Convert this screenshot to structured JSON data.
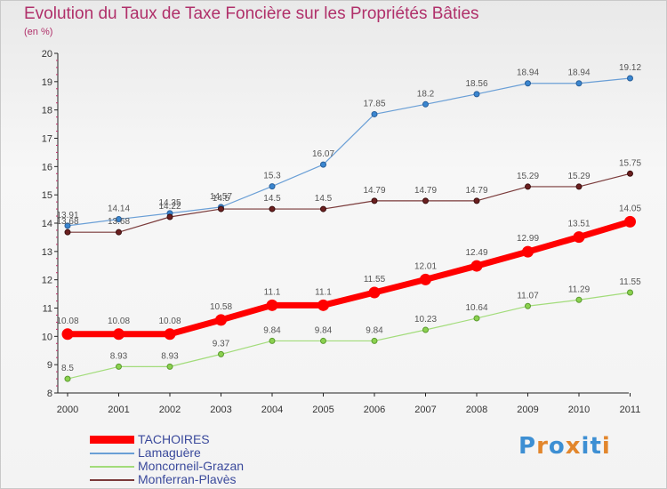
{
  "title": "Evolution du Taux de Taxe Foncière sur les Propriétés Bâties",
  "unit": "(en %)",
  "brand": {
    "logo": "Proxiti",
    "colors": [
      "#3d8fd3",
      "#e2862c",
      "#3d8fd3",
      "#e2862c",
      "#3d8fd3",
      "#3d8fd3",
      "#e2862c"
    ]
  },
  "chart_data": {
    "type": "line",
    "title": "Evolution du Taux de Taxe Foncière sur les Propriétés Bâties",
    "ylabel": "(en %)",
    "xlabel": "",
    "categories": [
      "2000",
      "2001",
      "2002",
      "2003",
      "2004",
      "2005",
      "2006",
      "2007",
      "2008",
      "2009",
      "2010",
      "2011"
    ],
    "ylim": [
      8,
      20
    ],
    "yticks": [
      "8",
      "9",
      "10",
      "11",
      "12",
      "13",
      "14",
      "15",
      "16",
      "17",
      "18",
      "19",
      "20"
    ],
    "grid": false,
    "legend_position": "bottom-left",
    "series": [
      {
        "name": "TACHOIRES",
        "color": "#ff0000",
        "values": [
          10.08,
          10.08,
          10.08,
          10.58,
          11.1,
          11.1,
          11.55,
          12.01,
          12.49,
          12.99,
          13.51,
          14.05
        ],
        "labels": [
          "10.08",
          "10.08",
          "10.08",
          "10.58",
          "11.1",
          "11.1",
          "11.55",
          "12.01",
          "12.49",
          "12.99",
          "13.51",
          "14.05"
        ]
      },
      {
        "name": "Lamaguère",
        "color": "#6a9fd6",
        "values": [
          13.91,
          14.14,
          14.35,
          14.57,
          15.3,
          16.07,
          17.85,
          18.2,
          18.56,
          18.94,
          18.94,
          19.12
        ],
        "labels": [
          "13.91",
          "14.14",
          "14.35",
          "14.57",
          "15.3",
          "16.07",
          "17.85",
          "18.2",
          "18.56",
          "18.94",
          "18.94",
          "19.12"
        ]
      },
      {
        "name": "Moncorneil-Grazan",
        "color": "#a2dc7a",
        "values": [
          8.5,
          8.93,
          8.93,
          9.37,
          9.84,
          9.84,
          9.84,
          10.23,
          10.64,
          11.07,
          11.29,
          11.55
        ],
        "labels": [
          "8.5",
          "8.93",
          "8.93",
          "9.37",
          "9.84",
          "9.84",
          "9.84",
          "10.23",
          "10.64",
          "11.07",
          "11.29",
          "11.55"
        ]
      },
      {
        "name": "Monferran-Plavès",
        "color": "#7a3a3a",
        "values": [
          13.68,
          13.68,
          14.22,
          14.5,
          14.5,
          14.5,
          14.79,
          14.79,
          14.79,
          15.29,
          15.29,
          15.75
        ],
        "labels": [
          "13.68",
          "13.68",
          "14.22",
          "14.5",
          "14.5",
          "14.5",
          "14.79",
          "14.79",
          "14.79",
          "15.29",
          "15.29",
          "15.75"
        ]
      }
    ]
  }
}
